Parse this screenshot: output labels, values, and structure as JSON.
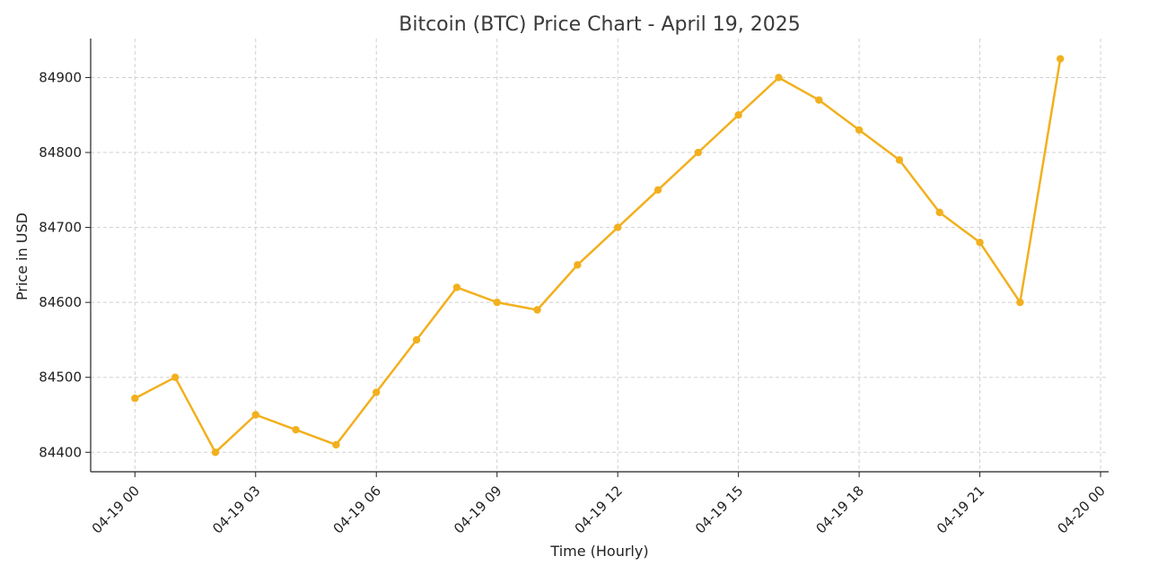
{
  "chart_data": {
    "type": "line",
    "title": "Bitcoin (BTC) Price Chart - April 19, 2025",
    "xlabel": "Time (Hourly)",
    "ylabel": "Price in USD",
    "grid": true,
    "series_color": "#f2b01e",
    "x": [
      "04-19 00",
      "04-19 01",
      "04-19 02",
      "04-19 03",
      "04-19 04",
      "04-19 05",
      "04-19 06",
      "04-19 07",
      "04-19 08",
      "04-19 09",
      "04-19 10",
      "04-19 11",
      "04-19 12",
      "04-19 13",
      "04-19 14",
      "04-19 15",
      "04-19 16",
      "04-19 17",
      "04-19 18",
      "04-19 19",
      "04-19 20",
      "04-19 21",
      "04-19 22",
      "04-19 23"
    ],
    "values": [
      84472,
      84500,
      84400,
      84450,
      84430,
      84410,
      84480,
      84550,
      84620,
      84600,
      84590,
      84650,
      84700,
      84750,
      84800,
      84850,
      84900,
      84870,
      84830,
      84790,
      84720,
      84680,
      84600,
      84925
    ],
    "xticks": [
      "04-19 00",
      "04-19 03",
      "04-19 06",
      "04-19 09",
      "04-19 12",
      "04-19 15",
      "04-19 18",
      "04-19 21",
      "04-20 00"
    ],
    "yticks": [
      84400,
      84500,
      84600,
      84700,
      84800,
      84900
    ],
    "ylim": [
      84374,
      84952
    ],
    "xlim_hours": [
      -1.1,
      24.2
    ]
  }
}
